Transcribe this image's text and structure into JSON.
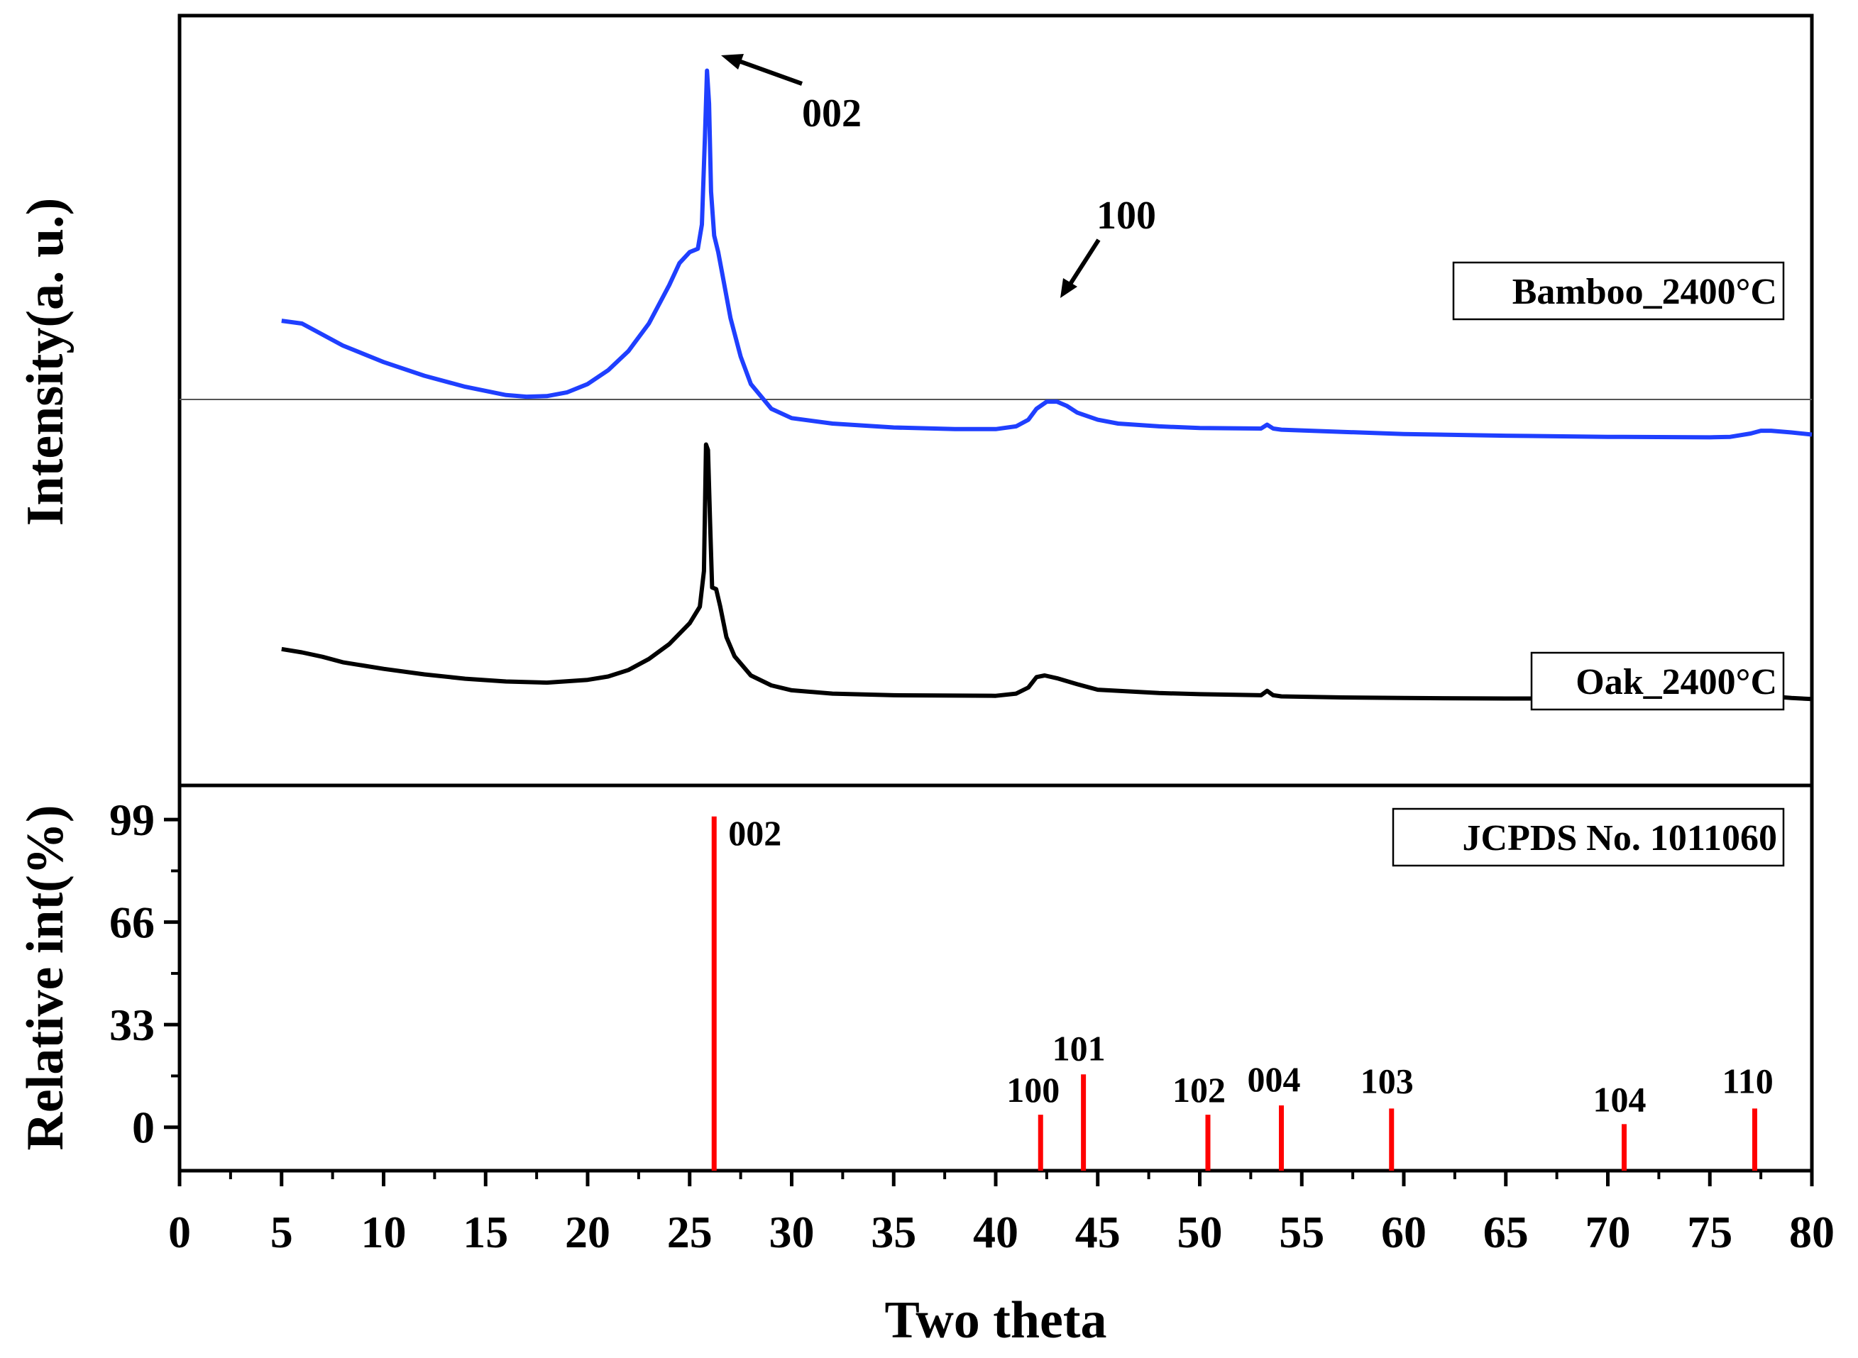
{
  "chart_data": {
    "type": "line",
    "xlabel": "Two theta",
    "xlim": [
      0,
      80
    ],
    "xticks": [
      0,
      5,
      10,
      15,
      20,
      25,
      30,
      35,
      40,
      45,
      50,
      55,
      60,
      65,
      70,
      75,
      80
    ],
    "upper_panel": {
      "ylabel": "Intensity(a. u.)",
      "series": [
        {
          "name": "Bamboo_2400°C",
          "label": "Bamboo_2400°C",
          "color": "#1f3fff",
          "x": [
            5,
            6,
            7,
            8,
            10,
            12,
            14,
            16,
            17,
            18,
            19,
            20,
            21,
            22,
            23,
            24,
            24.5,
            25,
            25.4,
            25.6,
            25.75,
            25.85,
            25.95,
            26.05,
            26.2,
            26.4,
            26.6,
            27,
            27.5,
            28,
            29,
            30,
            32,
            35,
            38,
            40,
            41,
            41.6,
            42,
            42.5,
            43,
            43.5,
            44,
            45,
            46,
            48,
            50,
            53,
            53.3,
            53.6,
            54,
            57,
            60,
            65,
            70,
            75,
            76,
            77,
            77.5,
            78,
            79,
            80
          ],
          "y": [
            44.5,
            44,
            42,
            40,
            37,
            34.5,
            32.5,
            31,
            30.7,
            30.8,
            31.5,
            33,
            35.5,
            39,
            44,
            51,
            55,
            57,
            57.6,
            62,
            78,
            90,
            84,
            68,
            60,
            57,
            53,
            45,
            38,
            33,
            28.5,
            26.8,
            25.8,
            25.1,
            24.8,
            24.8,
            25.3,
            26.5,
            28.5,
            29.8,
            29.8,
            29,
            27.8,
            26.5,
            25.8,
            25.3,
            25,
            24.9,
            25.6,
            24.9,
            24.7,
            24.3,
            23.9,
            23.6,
            23.4,
            23.3,
            23.4,
            24,
            24.5,
            24.5,
            24.2,
            23.8
          ]
        },
        {
          "name": "Oak_2400°C",
          "label": "Oak_2400°C",
          "color": "#000000",
          "x": [
            5,
            6,
            7,
            8,
            10,
            12,
            14,
            16,
            18,
            20,
            21,
            22,
            23,
            24,
            25,
            25.5,
            25.7,
            25.8,
            25.9,
            26,
            26.1,
            26.3,
            26.5,
            26.8,
            27.2,
            28,
            29,
            30,
            32,
            35,
            40,
            41,
            41.6,
            42,
            42.4,
            43,
            44,
            45,
            48,
            50,
            53,
            53.3,
            53.6,
            54,
            57,
            60,
            65,
            70,
            75,
            76.5,
            77,
            77.5,
            78,
            79,
            80
          ],
          "y": [
            -15.2,
            -15.8,
            -16.6,
            -17.6,
            -18.8,
            -19.8,
            -20.6,
            -21.1,
            -21.3,
            -20.8,
            -20.2,
            -19,
            -17,
            -14.3,
            -10.5,
            -7.5,
            -1,
            22,
            21,
            8,
            -4,
            -4.3,
            -7.5,
            -13,
            -16.5,
            -20,
            -21.8,
            -22.7,
            -23.3,
            -23.6,
            -23.7,
            -23.3,
            -22.2,
            -20.3,
            -20,
            -20.5,
            -21.6,
            -22.6,
            -23.2,
            -23.4,
            -23.6,
            -22.8,
            -23.6,
            -23.8,
            -24,
            -24.1,
            -24.2,
            -24.2,
            -24.3,
            -24.2,
            -23.7,
            -23.5,
            -23.8,
            -24.1,
            -24.3
          ]
        }
      ],
      "annotations": [
        {
          "text": "002",
          "x": 26.0,
          "y": 90
        },
        {
          "text": "100",
          "x": 43.0,
          "y": 30
        }
      ]
    },
    "lower_panel": {
      "ylabel": "Relative int(%)",
      "yticks": [
        0,
        33,
        66,
        99
      ],
      "ylim": [
        -14,
        110
      ],
      "legend": "JCPDS No. 1011060",
      "color": "#ff0000",
      "sticks": [
        {
          "label": "002",
          "x": 26.2,
          "value": 100
        },
        {
          "label": "100",
          "x": 42.2,
          "value": 4
        },
        {
          "label": "101",
          "x": 44.3,
          "value": 17
        },
        {
          "label": "102",
          "x": 50.4,
          "value": 4
        },
        {
          "label": "004",
          "x": 54.0,
          "value": 7
        },
        {
          "label": "103",
          "x": 59.4,
          "value": 6
        },
        {
          "label": "104",
          "x": 70.8,
          "value": 1
        },
        {
          "label": "110",
          "x": 77.2,
          "value": 6
        }
      ]
    }
  }
}
